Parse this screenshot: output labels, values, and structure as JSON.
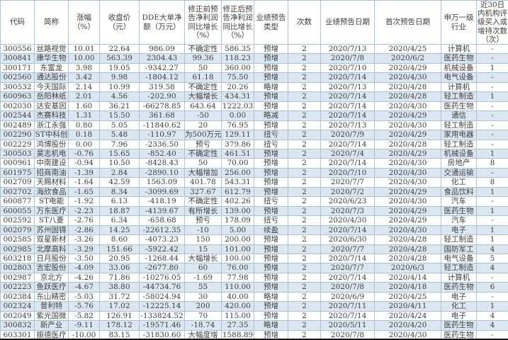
{
  "colors": {
    "stripe": "#dce6f1",
    "grid_line": "#a9c2dc",
    "text": "#3d3d3d",
    "bottom_line": "#1a1a1a"
  },
  "table": {
    "columns": [
      {
        "id": "code",
        "label": "代码"
      },
      {
        "id": "name",
        "label": "简称"
      },
      {
        "id": "change-pct",
        "label": "涨幅（%）"
      },
      {
        "id": "close-price",
        "label": "收盘价（元）"
      },
      {
        "id": "dde-net",
        "label": "DDE大单净额（万元）"
      },
      {
        "id": "pre-revision-growth",
        "label": "修正前预告净利润同比增长（%）"
      },
      {
        "id": "post-revision-growth",
        "label": "修正后预告净利润同比增长（%）"
      },
      {
        "id": "forecast-type",
        "label": "业绩预告类型"
      },
      {
        "id": "times",
        "label": "次数"
      },
      {
        "id": "forecast-date",
        "label": "业绩预告日期"
      },
      {
        "id": "first-forecast-date",
        "label": "首次预告日期"
      },
      {
        "id": "industry",
        "label": "申万一级行业"
      },
      {
        "id": "buy-ratings-30d",
        "label": "近30日内机构评级买入或增持次数（次）"
      }
    ],
    "rows": [
      [
        "300556",
        "丝路视觉",
        "10.01",
        "22.64",
        "986.09",
        "不确定性",
        "586.35",
        "预增",
        "2",
        "2020/7/13",
        "2020/4/25",
        "计算机",
        "-"
      ],
      [
        "300841",
        "康华生物",
        "10.00",
        "563.39",
        "2304.43",
        "99.36",
        "118.23",
        "预增",
        "2",
        "2020/7/8",
        "2020/6/2",
        "医药生物",
        "-"
      ],
      [
        "300171",
        "东富龙",
        "3.98",
        "19.05",
        "-9342.27",
        "50",
        "360.00",
        "预增",
        "2",
        "2020/7/10",
        "2020/4/29",
        "机械设备",
        "1"
      ],
      [
        "002560",
        "通达股份",
        "3.42",
        "9.98",
        "-1804.12",
        "61.18",
        "75.50",
        "预增",
        "2",
        "2020/7/14",
        "2020/4/30",
        "电气设备",
        "-"
      ],
      [
        "300532",
        "今天国际",
        "2.14",
        "10.99",
        "319.58",
        "不确定性",
        "20.26",
        "略增",
        "2",
        "2020/7/13",
        "2020/4/28",
        "计算机",
        "-"
      ],
      [
        "600963",
        "岳阳林纸",
        "2.01",
        "4.56",
        "-202.90",
        "大幅增长",
        "434.31",
        "预增",
        "2",
        "2020/7/14",
        "2020/4/28",
        "轻工制造",
        "1"
      ],
      [
        "002030",
        "达安基因",
        "1.60",
        "36.21",
        "-66278.85",
        "643.64",
        "1222.03",
        "预增",
        "2",
        "2020/7/14",
        "2020/4/30",
        "医药生物",
        "-"
      ],
      [
        "002544",
        "杰赛科技",
        "1.31",
        "15.50",
        "361.68",
        "-50",
        "0.00",
        "略减",
        "2",
        "2020/7/14",
        "2020/4/29",
        "通信",
        "-"
      ],
      [
        "002489",
        "浙江永强",
        "0.80",
        "5.05",
        "-11840.62",
        "20",
        "76.95",
        "预增",
        "2",
        "2020/7/13",
        "2020/4/30",
        "轻工制造",
        "-"
      ],
      [
        "002290",
        "ST中科创",
        "0.18",
        "5.48",
        "-110.97",
        "为500万元",
        "129.11",
        "扭亏",
        "2",
        "2020/7/9",
        "2020/4/29",
        "家用电器",
        "-"
      ],
      [
        "002229",
        "鸿博股份",
        "0.00",
        "7.96",
        "-2336.50",
        "预亏",
        "379.86",
        "扭亏",
        "2",
        "2020/7/14",
        "2020/4/28",
        "轻工制造",
        "-"
      ],
      [
        "300503",
        "昊志机电",
        "-0.76",
        "15.65",
        "-852.40",
        "不确定性",
        "461.51",
        "预增",
        "2",
        "2020/7/4",
        "2020/4/29",
        "机械设备",
        "1"
      ],
      [
        "000961",
        "中南建设",
        "-0.94",
        "10.50",
        "-8428.43",
        "50",
        "70.00",
        "预增",
        "2",
        "2020/7/14",
        "2020/4/30",
        "房地产",
        "8"
      ],
      [
        "601975",
        "招商南油",
        "-1.39",
        "2.84",
        "-2890.10",
        "大幅增加",
        "256.00",
        "预增",
        "2",
        "2020/7/10",
        "2020/4/30",
        "交通运输",
        "-"
      ],
      [
        "002709",
        "天赐材料",
        "-1.64",
        "42.59",
        "1563.09",
        "401.78",
        "543.31",
        "预增",
        "2",
        "2020/7/7",
        "2020/4/30",
        "化工",
        "8"
      ],
      [
        "002702",
        "海欣食品",
        "-1.65",
        "8.34",
        "-3099.69",
        "327.67",
        "612.79",
        "预增",
        "2",
        "2020/7/2",
        "2020/4/29",
        "食品饮料",
        "1"
      ],
      [
        "600877",
        "ST电能",
        "-1.92",
        "6.13",
        "-418.19",
        "不确定性",
        "402.26",
        "扭亏",
        "2",
        "2020/6/23",
        "2020/4/30",
        "汽车",
        "-"
      ],
      [
        "600055",
        "万东医疗",
        "-2.23",
        "18.87",
        "-4139.67",
        "有所增长",
        "139.00",
        "预增",
        "2",
        "2020/7/3",
        "2020/4/29",
        "医药生物",
        "1"
      ],
      [
        "002592",
        "ST八菱",
        "-2.76",
        "6.34",
        "-658.68",
        "预亏",
        "178.09",
        "扭亏",
        "2",
        "2020/4/30",
        "2020/4/29",
        "汽车",
        "-"
      ],
      [
        "002079",
        "苏州固锝",
        "-2.86",
        "14.25",
        "-22612.35",
        "-10",
        "5.00",
        "续盈",
        "2",
        "2020/7/14",
        "2020/4/30",
        "电子",
        "1"
      ],
      [
        "002585",
        "双星新材",
        "-3.26",
        "8.60",
        "-4073.23",
        "150",
        "200.00",
        "预增",
        "2",
        "2020/6/30",
        "2020/4/28",
        "轻工制造",
        "1"
      ],
      [
        "002985",
        "北摩高科",
        "-3.29",
        "151.66",
        "-5922.42",
        "15",
        "101.00",
        "预增",
        "2",
        "2020/7/7",
        "2020/4/28",
        "国防军工",
        "4"
      ],
      [
        "603218",
        "日月股份",
        "-3.50",
        "20.95",
        "-1268.44",
        "大幅增长",
        "100.00",
        "预增",
        "2",
        "2020/7/14",
        "2020/4/28",
        "电气设备",
        "5"
      ],
      [
        "002803",
        "吉宏股份",
        "-4.09",
        "33.06",
        "-2677.80",
        "60",
        "76.00",
        "预增",
        "2",
        "2020/7/7",
        "2020/6/3",
        "轻工制造",
        "4"
      ],
      [
        "002987",
        "京北方",
        "-4.26",
        "71.86",
        "-10276.05",
        "-1.69",
        "77.98",
        "预增",
        "2",
        "2020/7/14",
        "2020/4/14",
        "计算机",
        "-"
      ],
      [
        "002223",
        "鱼跃医疗",
        "-4.67",
        "38.80",
        "-44734.76",
        "55",
        "110.00",
        "预增",
        "2",
        "2020/7/8",
        "2020/4/18",
        "医药生物",
        "6"
      ],
      [
        "002384",
        "东山精密",
        "-5.03",
        "31.72",
        "-58024.94",
        "30",
        "40.00",
        "略增",
        "2",
        "2020/6/9",
        "2020/4/25",
        "电子",
        "-"
      ],
      [
        "002324",
        "普利特",
        "-5.76",
        "17.02",
        "-12225.14",
        "200",
        "420.00",
        "预增",
        "2",
        "2020/7/11",
        "2020/4/11",
        "化工",
        "1"
      ],
      [
        "002049",
        "紫光国微",
        "-5.82",
        "126.91",
        "-133824.52",
        "70",
        "115.00",
        "预增",
        "2",
        "2020/7/14",
        "2020/4/24",
        "电子",
        "4"
      ],
      [
        "300832",
        "新产业",
        "-9.11",
        "178.12",
        "-19571.46",
        "-18.74",
        "27.35",
        "略增",
        "2",
        "2020/5/11",
        "2020/4/20",
        "医药生物",
        "4"
      ],
      [
        "603301",
        "振德医疗",
        "-10.00",
        "83.15",
        "-31830.60",
        "大幅度增",
        "1588.89",
        "预增",
        "2",
        "2020/7/8",
        "2020/4/30",
        "医药生物",
        "-"
      ]
    ]
  }
}
